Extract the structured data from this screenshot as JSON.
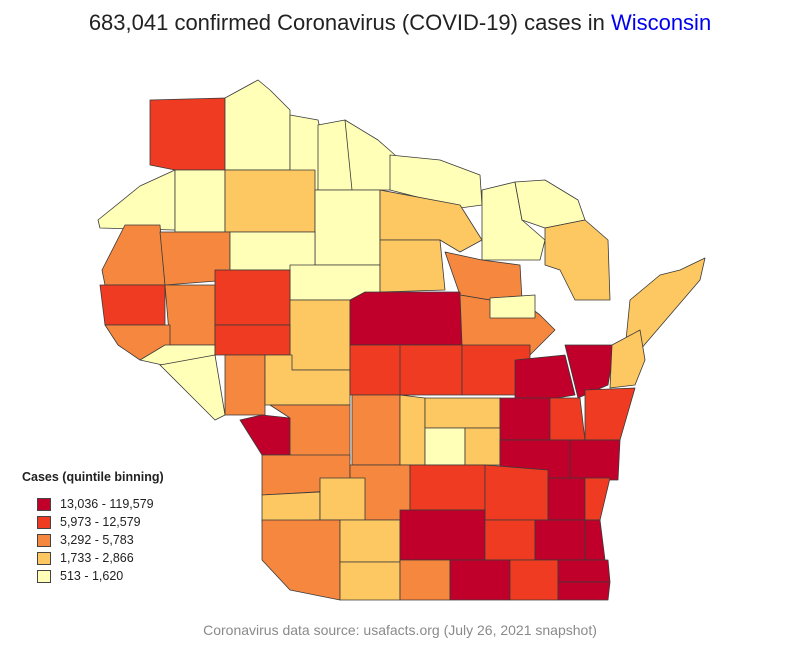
{
  "title": {
    "prefix": "683,041 confirmed Coronavirus (COVID-19) cases in ",
    "state": "Wisconsin"
  },
  "legend": {
    "title": "Cases (quintile binning)",
    "items": [
      {
        "label": "13,036 - 119,579",
        "color": "#c0002a"
      },
      {
        "label": "5,973 - 12,579",
        "color": "#ef3b22"
      },
      {
        "label": "3,292 - 5,783",
        "color": "#f5873e"
      },
      {
        "label": "1,733 - 2,866",
        "color": "#fdc762"
      },
      {
        "label": "513 - 1,620",
        "color": "#ffffb8"
      }
    ]
  },
  "footer": "Coronavirus data source: usafacts.org (July 26, 2021 snapshot)",
  "counties": [
    {
      "name": "Douglas",
      "bin": 1
    },
    {
      "name": "Bayfield",
      "bin": 4
    },
    {
      "name": "Ashland",
      "bin": 4
    },
    {
      "name": "Iron",
      "bin": 4
    },
    {
      "name": "Vilas",
      "bin": 4
    },
    {
      "name": "Florence",
      "bin": 4
    },
    {
      "name": "Burnett",
      "bin": 4
    },
    {
      "name": "Washburn",
      "bin": 4
    },
    {
      "name": "Sawyer",
      "bin": 3
    },
    {
      "name": "Price",
      "bin": 4
    },
    {
      "name": "Oneida",
      "bin": 3
    },
    {
      "name": "Forest",
      "bin": 4
    },
    {
      "name": "Marinette",
      "bin": 4
    },
    {
      "name": "Polk",
      "bin": 2
    },
    {
      "name": "Barron",
      "bin": 2
    },
    {
      "name": "Rusk",
      "bin": 4
    },
    {
      "name": "Taylor",
      "bin": 4
    },
    {
      "name": "Lincoln",
      "bin": 3
    },
    {
      "name": "Langlade",
      "bin": 2
    },
    {
      "name": "Oconto",
      "bin": 3
    },
    {
      "name": "Door",
      "bin": 3
    },
    {
      "name": "St. Croix",
      "bin": 1
    },
    {
      "name": "Dunn",
      "bin": 2
    },
    {
      "name": "Chippewa",
      "bin": 1
    },
    {
      "name": "Clark",
      "bin": 3
    },
    {
      "name": "Marathon",
      "bin": 0
    },
    {
      "name": "Shawano",
      "bin": 2
    },
    {
      "name": "Menominee",
      "bin": 4
    },
    {
      "name": "Pierce",
      "bin": 2
    },
    {
      "name": "Pepin",
      "bin": 4
    },
    {
      "name": "Eau Claire",
      "bin": 1
    },
    {
      "name": "Buffalo",
      "bin": 4
    },
    {
      "name": "Trempealeau",
      "bin": 2
    },
    {
      "name": "Jackson",
      "bin": 3
    },
    {
      "name": "Wood",
      "bin": 1
    },
    {
      "name": "Portage",
      "bin": 1
    },
    {
      "name": "Waupaca",
      "bin": 1
    },
    {
      "name": "Outagamie",
      "bin": 0
    },
    {
      "name": "Brown",
      "bin": 0
    },
    {
      "name": "Kewaunee",
      "bin": 3
    },
    {
      "name": "La Crosse",
      "bin": 0
    },
    {
      "name": "Monroe",
      "bin": 2
    },
    {
      "name": "Juneau",
      "bin": 2
    },
    {
      "name": "Adams",
      "bin": 3
    },
    {
      "name": "Waushara",
      "bin": 3
    },
    {
      "name": "Winnebago",
      "bin": 0
    },
    {
      "name": "Calumet",
      "bin": 1
    },
    {
      "name": "Manitowoc",
      "bin": 1
    },
    {
      "name": "Vernon",
      "bin": 2
    },
    {
      "name": "Richland",
      "bin": 3
    },
    {
      "name": "Sauk",
      "bin": 2
    },
    {
      "name": "Marquette",
      "bin": 4
    },
    {
      "name": "Green Lake",
      "bin": 3
    },
    {
      "name": "Fond du Lac",
      "bin": 0
    },
    {
      "name": "Sheboygan",
      "bin": 0
    },
    {
      "name": "Crawford",
      "bin": 3
    },
    {
      "name": "Columbia",
      "bin": 1
    },
    {
      "name": "Dodge",
      "bin": 1
    },
    {
      "name": "Washington",
      "bin": 0
    },
    {
      "name": "Ozaukee",
      "bin": 1
    },
    {
      "name": "Grant",
      "bin": 2
    },
    {
      "name": "Iowa",
      "bin": 3
    },
    {
      "name": "Dane",
      "bin": 0
    },
    {
      "name": "Jefferson",
      "bin": 1
    },
    {
      "name": "Waukesha",
      "bin": 0
    },
    {
      "name": "Milwaukee",
      "bin": 0
    },
    {
      "name": "Lafayette",
      "bin": 3
    },
    {
      "name": "Green",
      "bin": 2
    },
    {
      "name": "Rock",
      "bin": 0
    },
    {
      "name": "Walworth",
      "bin": 1
    },
    {
      "name": "Racine",
      "bin": 0
    },
    {
      "name": "Kenosha",
      "bin": 0
    }
  ]
}
